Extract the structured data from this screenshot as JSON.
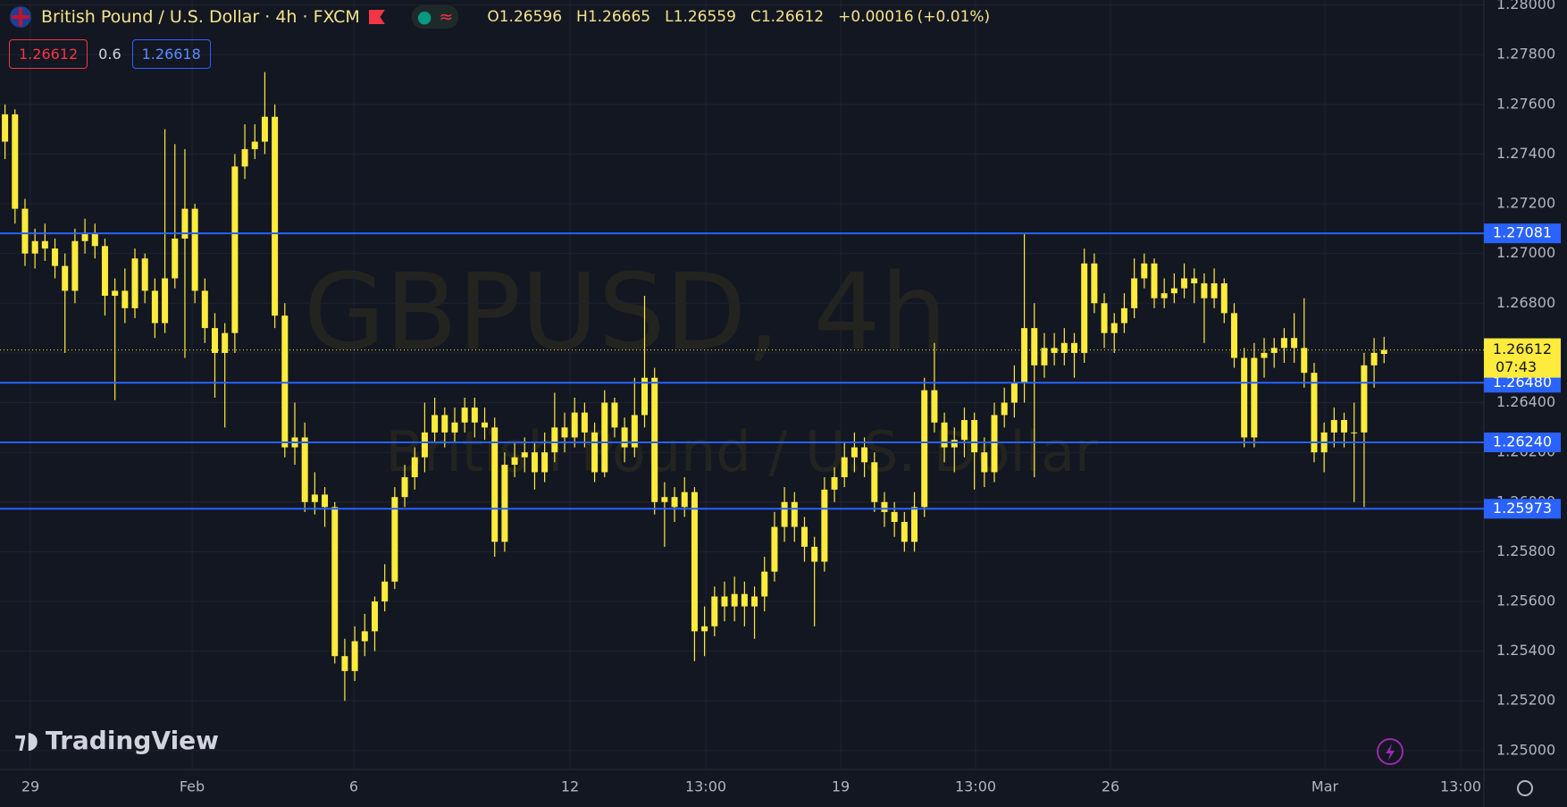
{
  "header": {
    "symbol_title": "British Pound / U.S. Dollar · 4h · FXCM",
    "legend": [
      {
        "key": "O",
        "value": "1.26596"
      },
      {
        "key": "H",
        "value": "1.26665"
      },
      {
        "key": "L",
        "value": "1.26559"
      },
      {
        "key": "C",
        "value": "1.26612"
      },
      {
        "key": "+0.00016",
        "value": "(+0.01%)"
      }
    ],
    "bid": "1.26612",
    "spread": "0.6",
    "ask": "1.26618"
  },
  "watermark": {
    "line1": "GBPUSD, 4h",
    "line2": "British Pound / U.S. Dollar"
  },
  "logo": "TradingView",
  "chart_data": {
    "type": "candlestick",
    "color": "#ffeb3b",
    "ylim": [
      1.24924,
      1.2802
    ],
    "yticks": [
      {
        "value": 1.25,
        "label": "1.25000"
      },
      {
        "value": 1.252,
        "label": "1.25200"
      },
      {
        "value": 1.254,
        "label": "1.25400"
      },
      {
        "value": 1.256,
        "label": "1.25600"
      },
      {
        "value": 1.258,
        "label": "1.25800"
      },
      {
        "value": 1.26,
        "label": "1.26000"
      },
      {
        "value": 1.262,
        "label": "1.26200"
      },
      {
        "value": 1.264,
        "label": "1.26400"
      },
      {
        "value": 1.266,
        "label": "1.26600"
      },
      {
        "value": 1.268,
        "label": "1.26800"
      },
      {
        "value": 1.27,
        "label": "1.27000"
      },
      {
        "value": 1.272,
        "label": "1.27200"
      },
      {
        "value": 1.274,
        "label": "1.27400"
      },
      {
        "value": 1.276,
        "label": "1.27600"
      },
      {
        "value": 1.278,
        "label": "1.27800"
      },
      {
        "value": 1.28,
        "label": "1.28000"
      }
    ],
    "x_labels": [
      "29",
      "Feb",
      "6",
      "12",
      "13:00",
      "19",
      "13:00",
      "26",
      "Mar",
      "13:00"
    ],
    "levels": [
      1.27081,
      {
        "value": 1.2648,
        "label": "1.26480"
      },
      {
        "value": 1.2624,
        "label": "1.26240"
      },
      1.25973
    ],
    "level_color": "#2962ff",
    "last_price": 1.26612,
    "countdown": "07:43",
    "candles": [
      [
        1.2745,
        1.276,
        1.2738,
        1.2756
      ],
      [
        1.2756,
        1.2758,
        1.2712,
        1.2718
      ],
      [
        1.2718,
        1.2722,
        1.2695,
        1.27
      ],
      [
        1.27,
        1.271,
        1.2694,
        1.2705
      ],
      [
        1.2705,
        1.2712,
        1.2697,
        1.2702
      ],
      [
        1.2702,
        1.2706,
        1.269,
        1.2695
      ],
      [
        1.2695,
        1.27,
        1.266,
        1.2685
      ],
      [
        1.2685,
        1.271,
        1.268,
        1.2705
      ],
      [
        1.2705,
        1.2714,
        1.27,
        1.2708
      ],
      [
        1.2708,
        1.2712,
        1.2698,
        1.2703
      ],
      [
        1.2703,
        1.2706,
        1.2675,
        1.2683
      ],
      [
        1.2683,
        1.269,
        1.2641,
        1.2685
      ],
      [
        1.2685,
        1.2694,
        1.2672,
        1.2678
      ],
      [
        1.2678,
        1.2702,
        1.2674,
        1.2698
      ],
      [
        1.2698,
        1.27,
        1.268,
        1.2685
      ],
      [
        1.2685,
        1.269,
        1.2666,
        1.2672
      ],
      [
        1.2672,
        1.275,
        1.2668,
        1.269
      ],
      [
        1.269,
        1.2744,
        1.2686,
        1.2706
      ],
      [
        1.2706,
        1.2742,
        1.2658,
        1.2718
      ],
      [
        1.2718,
        1.272,
        1.268,
        1.2685
      ],
      [
        1.2685,
        1.269,
        1.2664,
        1.267
      ],
      [
        1.267,
        1.2676,
        1.2642,
        1.266
      ],
      [
        1.266,
        1.2672,
        1.263,
        1.2668
      ],
      [
        1.2668,
        1.274,
        1.266,
        1.2735
      ],
      [
        1.2735,
        1.2752,
        1.273,
        1.2742
      ],
      [
        1.2742,
        1.2752,
        1.2738,
        1.2745
      ],
      [
        1.2745,
        1.2773,
        1.274,
        1.2755
      ],
      [
        1.2755,
        1.276,
        1.267,
        1.2675
      ],
      [
        1.2675,
        1.268,
        1.2618,
        1.2622
      ],
      [
        1.2622,
        1.264,
        1.2615,
        1.2626
      ],
      [
        1.2626,
        1.2632,
        1.2596,
        1.26
      ],
      [
        1.26,
        1.2612,
        1.2595,
        1.2603
      ],
      [
        1.2603,
        1.2606,
        1.259,
        1.2598
      ],
      [
        1.2598,
        1.26,
        1.2535,
        1.2538
      ],
      [
        1.2538,
        1.2545,
        1.252,
        1.2532
      ],
      [
        1.2532,
        1.255,
        1.2528,
        1.2544
      ],
      [
        1.2544,
        1.2555,
        1.2538,
        1.2548
      ],
      [
        1.2548,
        1.2562,
        1.254,
        1.256
      ],
      [
        1.256,
        1.2575,
        1.2556,
        1.2568
      ],
      [
        1.2568,
        1.2606,
        1.2565,
        1.2602
      ],
      [
        1.2602,
        1.2615,
        1.2598,
        1.261
      ],
      [
        1.261,
        1.2622,
        1.2605,
        1.2618
      ],
      [
        1.2618,
        1.264,
        1.2612,
        1.2628
      ],
      [
        1.2628,
        1.2642,
        1.2624,
        1.2635
      ],
      [
        1.2635,
        1.2638,
        1.2622,
        1.2628
      ],
      [
        1.2628,
        1.2638,
        1.2624,
        1.2632
      ],
      [
        1.2632,
        1.2642,
        1.2628,
        1.2638
      ],
      [
        1.2638,
        1.2642,
        1.2626,
        1.2632
      ],
      [
        1.2632,
        1.2638,
        1.2625,
        1.263
      ],
      [
        1.263,
        1.2634,
        1.2578,
        1.2584
      ],
      [
        1.2584,
        1.262,
        1.258,
        1.2615
      ],
      [
        1.2615,
        1.2624,
        1.261,
        1.2618
      ],
      [
        1.2618,
        1.2626,
        1.2612,
        1.262
      ],
      [
        1.262,
        1.2624,
        1.2605,
        1.2612
      ],
      [
        1.2612,
        1.2628,
        1.2608,
        1.262
      ],
      [
        1.262,
        1.2644,
        1.2616,
        1.263
      ],
      [
        1.263,
        1.2636,
        1.262,
        1.2626
      ],
      [
        1.2626,
        1.2642,
        1.2622,
        1.2636
      ],
      [
        1.2636,
        1.264,
        1.2622,
        1.2628
      ],
      [
        1.2628,
        1.2632,
        1.2608,
        1.2612
      ],
      [
        1.2612,
        1.2645,
        1.261,
        1.264
      ],
      [
        1.264,
        1.2642,
        1.2626,
        1.263
      ],
      [
        1.263,
        1.2634,
        1.2616,
        1.2622
      ],
      [
        1.2622,
        1.265,
        1.2618,
        1.2635
      ],
      [
        1.2635,
        1.2683,
        1.263,
        1.265
      ],
      [
        1.265,
        1.2654,
        1.2595,
        1.26
      ],
      [
        1.26,
        1.2608,
        1.2582,
        1.2602
      ],
      [
        1.2602,
        1.2606,
        1.2592,
        1.2598
      ],
      [
        1.2598,
        1.261,
        1.2594,
        1.2604
      ],
      [
        1.2604,
        1.2606,
        1.2536,
        1.2548
      ],
      [
        1.2548,
        1.2558,
        1.2538,
        1.255
      ],
      [
        1.255,
        1.2566,
        1.2546,
        1.2562
      ],
      [
        1.2562,
        1.2568,
        1.2552,
        1.2558
      ],
      [
        1.2558,
        1.257,
        1.2552,
        1.2563
      ],
      [
        1.2563,
        1.2568,
        1.255,
        1.2558
      ],
      [
        1.2558,
        1.2566,
        1.2545,
        1.2562
      ],
      [
        1.2562,
        1.2578,
        1.2556,
        1.2572
      ],
      [
        1.2572,
        1.2596,
        1.2568,
        1.259
      ],
      [
        1.259,
        1.2606,
        1.2584,
        1.26
      ],
      [
        1.26,
        1.2604,
        1.2584,
        1.259
      ],
      [
        1.259,
        1.2594,
        1.2576,
        1.2582
      ],
      [
        1.2582,
        1.2586,
        1.255,
        1.2576
      ],
      [
        1.2576,
        1.261,
        1.2572,
        1.2605
      ],
      [
        1.2605,
        1.2614,
        1.26,
        1.261
      ],
      [
        1.261,
        1.2624,
        1.2606,
        1.2618
      ],
      [
        1.2618,
        1.2628,
        1.2612,
        1.2622
      ],
      [
        1.2622,
        1.2626,
        1.261,
        1.2616
      ],
      [
        1.2616,
        1.262,
        1.2596,
        1.26
      ],
      [
        1.26,
        1.2604,
        1.259,
        1.2596
      ],
      [
        1.2596,
        1.26,
        1.2586,
        1.2592
      ],
      [
        1.2592,
        1.2596,
        1.258,
        1.2584
      ],
      [
        1.2584,
        1.2604,
        1.258,
        1.2598
      ],
      [
        1.2598,
        1.265,
        1.2594,
        1.2645
      ],
      [
        1.2645,
        1.2664,
        1.2628,
        1.2632
      ],
      [
        1.2632,
        1.2636,
        1.2616,
        1.2622
      ],
      [
        1.2622,
        1.263,
        1.2612,
        1.2625
      ],
      [
        1.2625,
        1.2638,
        1.2618,
        1.2633
      ],
      [
        1.2633,
        1.2636,
        1.2605,
        1.262
      ],
      [
        1.262,
        1.2626,
        1.2606,
        1.2612
      ],
      [
        1.2612,
        1.264,
        1.2608,
        1.2635
      ],
      [
        1.2635,
        1.2646,
        1.263,
        1.264
      ],
      [
        1.264,
        1.2655,
        1.2634,
        1.2648
      ],
      [
        1.2648,
        1.2708,
        1.264,
        1.267
      ],
      [
        1.267,
        1.268,
        1.261,
        1.2655
      ],
      [
        1.2655,
        1.2668,
        1.265,
        1.2662
      ],
      [
        1.2662,
        1.2668,
        1.2655,
        1.266
      ],
      [
        1.266,
        1.267,
        1.2655,
        1.2664
      ],
      [
        1.2664,
        1.2668,
        1.265,
        1.266
      ],
      [
        1.266,
        1.2702,
        1.2656,
        1.2696
      ],
      [
        1.2696,
        1.27,
        1.2676,
        1.268
      ],
      [
        1.268,
        1.2684,
        1.2662,
        1.2668
      ],
      [
        1.2668,
        1.2676,
        1.266,
        1.2672
      ],
      [
        1.2672,
        1.2684,
        1.2668,
        1.2678
      ],
      [
        1.2678,
        1.2698,
        1.2674,
        1.269
      ],
      [
        1.269,
        1.27,
        1.2686,
        1.2696
      ],
      [
        1.2696,
        1.2698,
        1.2678,
        1.2682
      ],
      [
        1.2682,
        1.269,
        1.2678,
        1.2684
      ],
      [
        1.2684,
        1.2692,
        1.268,
        1.2686
      ],
      [
        1.2686,
        1.2696,
        1.2682,
        1.269
      ],
      [
        1.269,
        1.2694,
        1.268,
        1.2688
      ],
      [
        1.2688,
        1.2692,
        1.2664,
        1.2682
      ],
      [
        1.2682,
        1.2694,
        1.2678,
        1.2688
      ],
      [
        1.2688,
        1.269,
        1.2672,
        1.2676
      ],
      [
        1.2676,
        1.268,
        1.2654,
        1.2658
      ],
      [
        1.2658,
        1.2662,
        1.2622,
        1.2626
      ],
      [
        1.2626,
        1.2664,
        1.2622,
        1.2658
      ],
      [
        1.2658,
        1.2666,
        1.265,
        1.266
      ],
      [
        1.266,
        1.2666,
        1.2654,
        1.2662
      ],
      [
        1.2662,
        1.267,
        1.2656,
        1.2666
      ],
      [
        1.2666,
        1.2676,
        1.2656,
        1.2662
      ],
      [
        1.2662,
        1.2682,
        1.2646,
        1.2652
      ],
      [
        1.2652,
        1.2656,
        1.2616,
        1.262
      ],
      [
        1.262,
        1.2632,
        1.2612,
        1.2628
      ],
      [
        1.2628,
        1.2638,
        1.2622,
        1.2633
      ],
      [
        1.2633,
        1.2636,
        1.2622,
        1.2628
      ],
      [
        1.2628,
        1.264,
        1.26,
        1.2628
      ],
      [
        1.2628,
        1.266,
        1.2598,
        1.2655
      ],
      [
        1.2655,
        1.2666,
        1.2646,
        1.266
      ],
      [
        1.26596,
        1.26665,
        1.26559,
        1.26612
      ]
    ]
  }
}
